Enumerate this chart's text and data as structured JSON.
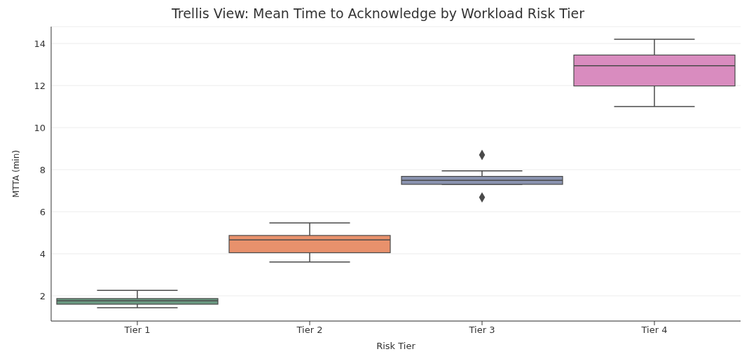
{
  "chart_data": {
    "type": "box",
    "title": "Trellis View: Mean Time to Acknowledge by Workload Risk Tier",
    "xlabel": "Risk Tier",
    "ylabel": "MTTA (min)",
    "categories": [
      "Tier 1",
      "Tier 2",
      "Tier 3",
      "Tier 4"
    ],
    "colors": [
      "#6b9a82",
      "#e8916c",
      "#8a93b0",
      "#d98cbf"
    ],
    "boxes": [
      {
        "low": 1.43,
        "q1": 1.6,
        "median": 1.77,
        "q3": 1.87,
        "high": 2.26
      },
      {
        "low": 3.61,
        "q1": 4.05,
        "median": 4.66,
        "q3": 4.87,
        "high": 5.47
      },
      {
        "low": 7.3,
        "q1": 7.3,
        "median": 7.49,
        "q3": 7.68,
        "high": 7.94,
        "outliers": [
          8.7,
          6.68
        ]
      },
      {
        "low": 11.0,
        "q1": 11.98,
        "median": 12.94,
        "q3": 13.45,
        "high": 14.2
      }
    ],
    "ylim": [
      0.8,
      14.8
    ],
    "yticks": [
      2,
      4,
      6,
      8,
      10,
      12,
      14
    ],
    "grid": "y"
  }
}
